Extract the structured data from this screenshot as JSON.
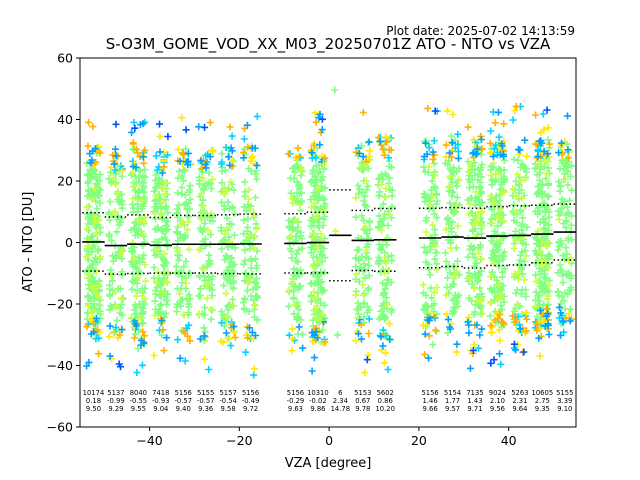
{
  "plot_date": "Plot date: 2025-07-02 14:13:59",
  "chart_data": {
    "type": "scatter",
    "title": "S-O3M_GOME_VOD_XX_M03_20250701Z ATO - NTO vs VZA",
    "xlabel": "VZA [degree]",
    "ylabel": "ATO - NTO [DU]",
    "xlim": [
      -55.5,
      55
    ],
    "ylim": [
      -60,
      60
    ],
    "xticks": [
      -40,
      -20,
      0,
      20,
      40
    ],
    "xtick_labels": [
      "−40",
      "−20",
      "0",
      "20",
      "40"
    ],
    "yticks": [
      -60,
      -40,
      -20,
      0,
      20,
      40,
      60
    ],
    "ytick_labels": [
      "−60",
      "−40",
      "−20",
      "0",
      "20",
      "40",
      "60"
    ],
    "grid": false,
    "point_colors": [
      "#80ff80",
      "#00d4ff",
      "#ffea00",
      "#ffb000",
      "#0050ff",
      "#00a0ff",
      "#c8ff40"
    ],
    "mean_line_color": "#000000",
    "bins": [
      {
        "x": -52.5,
        "n": "10174",
        "mean": "0.18",
        "std": "9.50"
      },
      {
        "x": -47.5,
        "n": "5137",
        "mean": "-0.99",
        "std": "9.29"
      },
      {
        "x": -42.5,
        "n": "8040",
        "mean": "-0.55",
        "std": "9.55"
      },
      {
        "x": -37.5,
        "n": "7418",
        "mean": "-0.93",
        "std": "9.04"
      },
      {
        "x": -32.5,
        "n": "5156",
        "mean": "-0.57",
        "std": "9.40"
      },
      {
        "x": -27.5,
        "n": "5155",
        "mean": "-0.57",
        "std": "9.36"
      },
      {
        "x": -22.5,
        "n": "5157",
        "mean": "-0.54",
        "std": "9.58"
      },
      {
        "x": -17.5,
        "n": "5156",
        "mean": "-0.49",
        "std": "9.72"
      },
      {
        "x": -7.5,
        "n": "5156",
        "mean": "-0.29",
        "std": "9.63"
      },
      {
        "x": -2.5,
        "n": "10310",
        "mean": "-0.02",
        "std": "9.86"
      },
      {
        "x": 2.5,
        "n": "6",
        "mean": "2.34",
        "std": "14.78"
      },
      {
        "x": 7.5,
        "n": "5153",
        "mean": "0.67",
        "std": "9.78"
      },
      {
        "x": 12.5,
        "n": "5602",
        "mean": "0.86",
        "std": "10.20"
      },
      {
        "x": 22.5,
        "n": "5156",
        "mean": "1.46",
        "std": "9.66"
      },
      {
        "x": 27.5,
        "n": "5154",
        "mean": "1.77",
        "std": "9.57"
      },
      {
        "x": 32.5,
        "n": "7135",
        "mean": "1.43",
        "std": "9.71"
      },
      {
        "x": 37.5,
        "n": "9024",
        "mean": "2.10",
        "std": "9.56"
      },
      {
        "x": 42.5,
        "n": "5263",
        "mean": "2.31",
        "std": "9.64"
      },
      {
        "x": 47.5,
        "n": "10605",
        "mean": "2.75",
        "std": "9.35"
      },
      {
        "x": 52.5,
        "n": "5155",
        "mean": "3.39",
        "std": "9.10"
      }
    ]
  }
}
